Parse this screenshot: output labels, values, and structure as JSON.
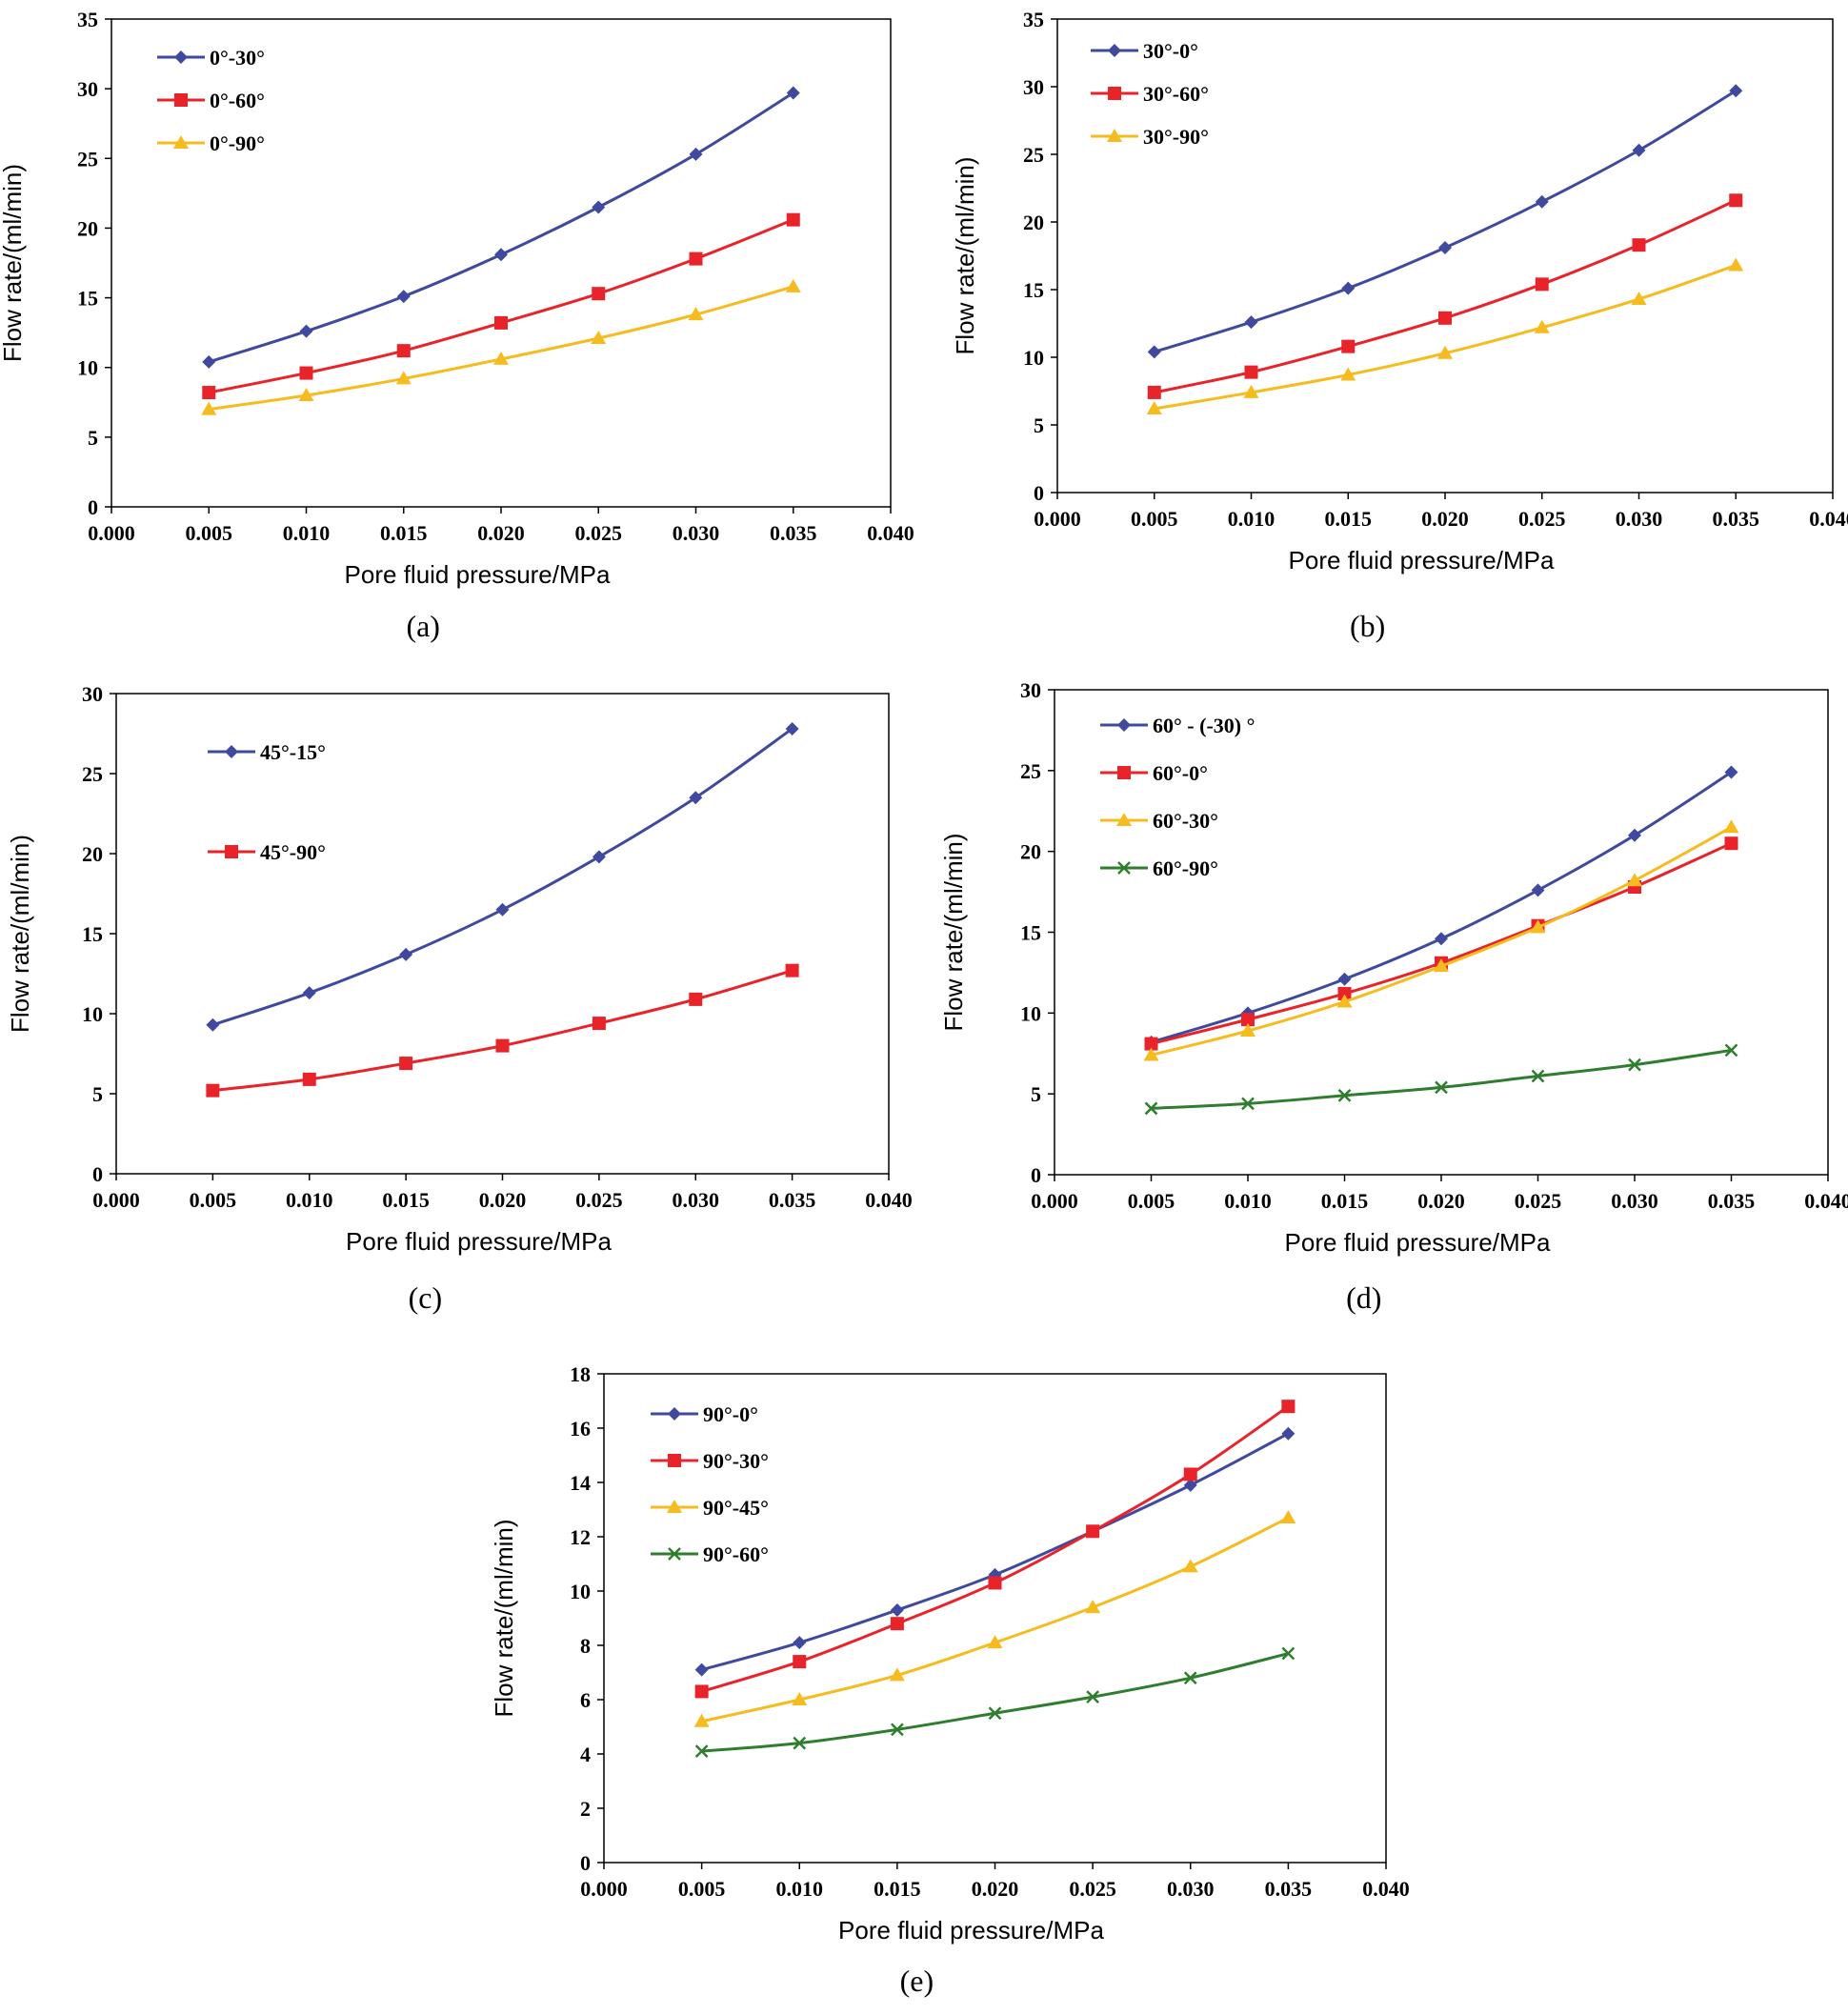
{
  "colors": {
    "blue": "#3F4A9E",
    "red": "#E8232A",
    "yellow": "#F6BB1E",
    "green": "#2F7D2F"
  },
  "chart_data": [
    {
      "type": "line",
      "caption": "(a)",
      "xlabel": "Pore fluid pressure/MPa",
      "ylabel": "Flow rate/(ml/min)",
      "xlim": [
        0,
        0.04
      ],
      "ylim": [
        0,
        35
      ],
      "xticks": [
        "0.000",
        "0.005",
        "0.010",
        "0.015",
        "0.020",
        "0.025",
        "0.030",
        "0.035",
        "0.040"
      ],
      "yticks": [
        "0",
        "5",
        "10",
        "15",
        "20",
        "25",
        "30",
        "35"
      ],
      "legend_position": "top-left",
      "x": [
        0.005,
        0.01,
        0.015,
        0.02,
        0.025,
        0.03,
        0.035
      ],
      "series": [
        {
          "name": "0°-30°",
          "color": "blue",
          "marker": "diamond",
          "values": [
            10.4,
            12.6,
            15.1,
            18.1,
            21.5,
            25.3,
            29.7
          ]
        },
        {
          "name": "0°-60°",
          "color": "red",
          "marker": "square",
          "values": [
            8.2,
            9.6,
            11.2,
            13.2,
            15.3,
            17.8,
            20.6
          ]
        },
        {
          "name": "0°-90°",
          "color": "yellow",
          "marker": "triangle",
          "values": [
            7.0,
            8.0,
            9.2,
            10.6,
            12.1,
            13.8,
            15.8
          ]
        }
      ]
    },
    {
      "type": "line",
      "caption": "(b)",
      "xlabel": "Pore fluid pressure/MPa",
      "ylabel": "Flow rate/(ml/min)",
      "xlim": [
        0,
        0.04
      ],
      "ylim": [
        0,
        35
      ],
      "xticks": [
        "0.000",
        "0.005",
        "0.010",
        "0.015",
        "0.020",
        "0.025",
        "0.030",
        "0.035",
        "0.040"
      ],
      "yticks": [
        "0",
        "5",
        "10",
        "15",
        "20",
        "25",
        "30",
        "35"
      ],
      "legend_position": "top-left",
      "x": [
        0.005,
        0.01,
        0.015,
        0.02,
        0.025,
        0.03,
        0.035
      ],
      "series": [
        {
          "name": "30°-0°",
          "color": "blue",
          "marker": "diamond",
          "values": [
            10.4,
            12.6,
            15.1,
            18.1,
            21.5,
            25.3,
            29.7
          ]
        },
        {
          "name": "30°-60°",
          "color": "red",
          "marker": "square",
          "values": [
            7.4,
            8.9,
            10.8,
            12.9,
            15.4,
            18.3,
            21.6
          ]
        },
        {
          "name": "30°-90°",
          "color": "yellow",
          "marker": "triangle",
          "values": [
            6.2,
            7.4,
            8.7,
            10.3,
            12.2,
            14.3,
            16.8
          ]
        }
      ]
    },
    {
      "type": "line",
      "caption": "(c)",
      "xlabel": "Pore fluid pressure/MPa",
      "ylabel": "Flow rate/(ml/min)",
      "xlim": [
        0,
        0.04
      ],
      "ylim": [
        0,
        30
      ],
      "xticks": [
        "0.000",
        "0.005",
        "0.010",
        "0.015",
        "0.020",
        "0.025",
        "0.030",
        "0.035",
        "0.040"
      ],
      "yticks": [
        "0",
        "5",
        "10",
        "15",
        "20",
        "25",
        "30"
      ],
      "legend_position": "top-left",
      "x": [
        0.005,
        0.01,
        0.015,
        0.02,
        0.025,
        0.03,
        0.035
      ],
      "series": [
        {
          "name": "45°-15°",
          "color": "blue",
          "marker": "diamond",
          "values": [
            9.3,
            11.3,
            13.7,
            16.5,
            19.8,
            23.5,
            27.8
          ]
        },
        {
          "name": "45°-90°",
          "color": "red",
          "marker": "square",
          "values": [
            5.2,
            5.9,
            6.9,
            8.0,
            9.4,
            10.9,
            12.7
          ]
        }
      ]
    },
    {
      "type": "line",
      "caption": "(d)",
      "xlabel": "Pore fluid pressure/MPa",
      "ylabel": "Flow rate/(ml/min)",
      "xlim": [
        0,
        0.04
      ],
      "ylim": [
        0,
        30
      ],
      "xticks": [
        "0.000",
        "0.005",
        "0.010",
        "0.015",
        "0.020",
        "0.025",
        "0.030",
        "0.035",
        "0.040"
      ],
      "yticks": [
        "0",
        "5",
        "10",
        "15",
        "20",
        "25",
        "30"
      ],
      "legend_position": "top-left",
      "x": [
        0.005,
        0.01,
        0.015,
        0.02,
        0.025,
        0.03,
        0.035
      ],
      "series": [
        {
          "name": "60° - (-30) °",
          "color": "blue",
          "marker": "diamond",
          "values": [
            8.2,
            10.0,
            12.1,
            14.6,
            17.6,
            21.0,
            24.9
          ]
        },
        {
          "name": "60°-0°",
          "color": "red",
          "marker": "square",
          "values": [
            8.1,
            9.6,
            11.2,
            13.1,
            15.4,
            17.8,
            20.5
          ]
        },
        {
          "name": "60°-30°",
          "color": "yellow",
          "marker": "triangle",
          "values": [
            7.4,
            8.9,
            10.7,
            12.9,
            15.3,
            18.2,
            21.5
          ]
        },
        {
          "name": "60°-90°",
          "color": "green",
          "marker": "cross",
          "values": [
            4.1,
            4.4,
            4.9,
            5.4,
            6.1,
            6.8,
            7.7
          ]
        }
      ]
    },
    {
      "type": "line",
      "caption": "(e)",
      "xlabel": "Pore fluid pressure/MPa",
      "ylabel": "Flow rate/(ml/min)",
      "xlim": [
        0,
        0.04
      ],
      "ylim": [
        0,
        18
      ],
      "xticks": [
        "0.000",
        "0.005",
        "0.010",
        "0.015",
        "0.020",
        "0.025",
        "0.030",
        "0.035",
        "0.040"
      ],
      "yticks": [
        "0",
        "2",
        "4",
        "6",
        "8",
        "10",
        "12",
        "14",
        "16",
        "18"
      ],
      "legend_position": "top-left",
      "x": [
        0.005,
        0.01,
        0.015,
        0.02,
        0.025,
        0.03,
        0.035
      ],
      "series": [
        {
          "name": "90°-0°",
          "color": "blue",
          "marker": "diamond",
          "values": [
            7.1,
            8.1,
            9.3,
            10.6,
            12.2,
            13.9,
            15.8
          ]
        },
        {
          "name": "90°-30°",
          "color": "red",
          "marker": "square",
          "values": [
            6.3,
            7.4,
            8.8,
            10.3,
            12.2,
            14.3,
            16.8
          ]
        },
        {
          "name": "90°-45°",
          "color": "yellow",
          "marker": "triangle",
          "values": [
            5.2,
            6.0,
            6.9,
            8.1,
            9.4,
            10.9,
            12.7
          ]
        },
        {
          "name": "90°-60°",
          "color": "green",
          "marker": "cross",
          "values": [
            4.1,
            4.4,
            4.9,
            5.5,
            6.1,
            6.8,
            7.7
          ]
        }
      ]
    }
  ]
}
